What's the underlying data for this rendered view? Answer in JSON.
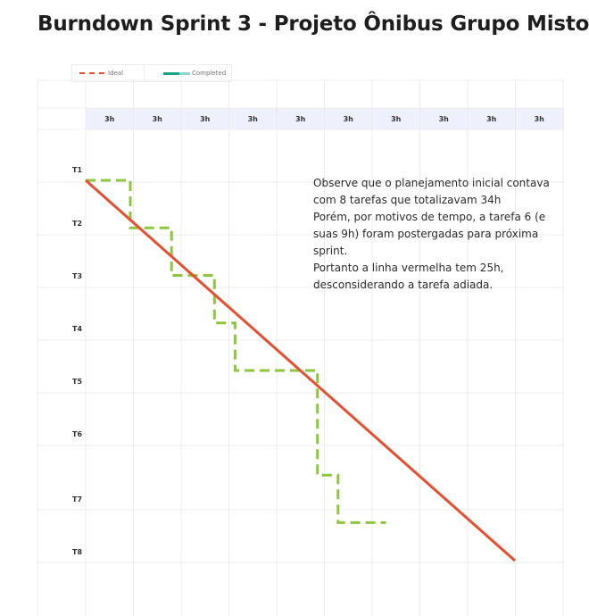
{
  "title": "Burndown Sprint 3 - Projeto Ônibus Grupo Misto",
  "legend": {
    "ideal": "Ideal",
    "completed": "Completed"
  },
  "colors": {
    "ideal": "#e94e2f",
    "completed": "#8dc63f",
    "header_band": "#eef0fb",
    "grid": "#ececec"
  },
  "note": {
    "lines": [
      "Observe que o planejamento inicial contava com 8 tarefas que totalizavam 34h",
      "Porém, por motivos de tempo, a tarefa 6 (e suas 9h) foram postergadas para próxima sprint.",
      "Portanto a linha vermelha tem 25h, desconsiderando a tarefa adiada."
    ]
  },
  "chart_data": {
    "type": "line",
    "x_tick_labels": [
      "3h",
      "3h",
      "3h",
      "3h",
      "3h",
      "3h",
      "3h",
      "3h",
      "3h",
      "3h"
    ],
    "y_tick_labels": [
      "T1",
      "T2",
      "T3",
      "T4",
      "T5",
      "T6",
      "T7",
      "T8"
    ],
    "series": [
      {
        "name": "Ideal",
        "points": [
          [
            0,
            0
          ],
          [
            25,
            8
          ]
        ]
      },
      {
        "name": "Completed",
        "points": [
          [
            0,
            0
          ],
          [
            2.6,
            0
          ],
          [
            2.6,
            1
          ],
          [
            5,
            1
          ],
          [
            5,
            2
          ],
          [
            7.5,
            2
          ],
          [
            7.5,
            3
          ],
          [
            8.7,
            3
          ],
          [
            8.7,
            4
          ],
          [
            13.5,
            4
          ],
          [
            13.5,
            6.2
          ],
          [
            14.7,
            6.2
          ],
          [
            14.7,
            7.2
          ],
          [
            17.5,
            7.2
          ]
        ]
      }
    ]
  }
}
